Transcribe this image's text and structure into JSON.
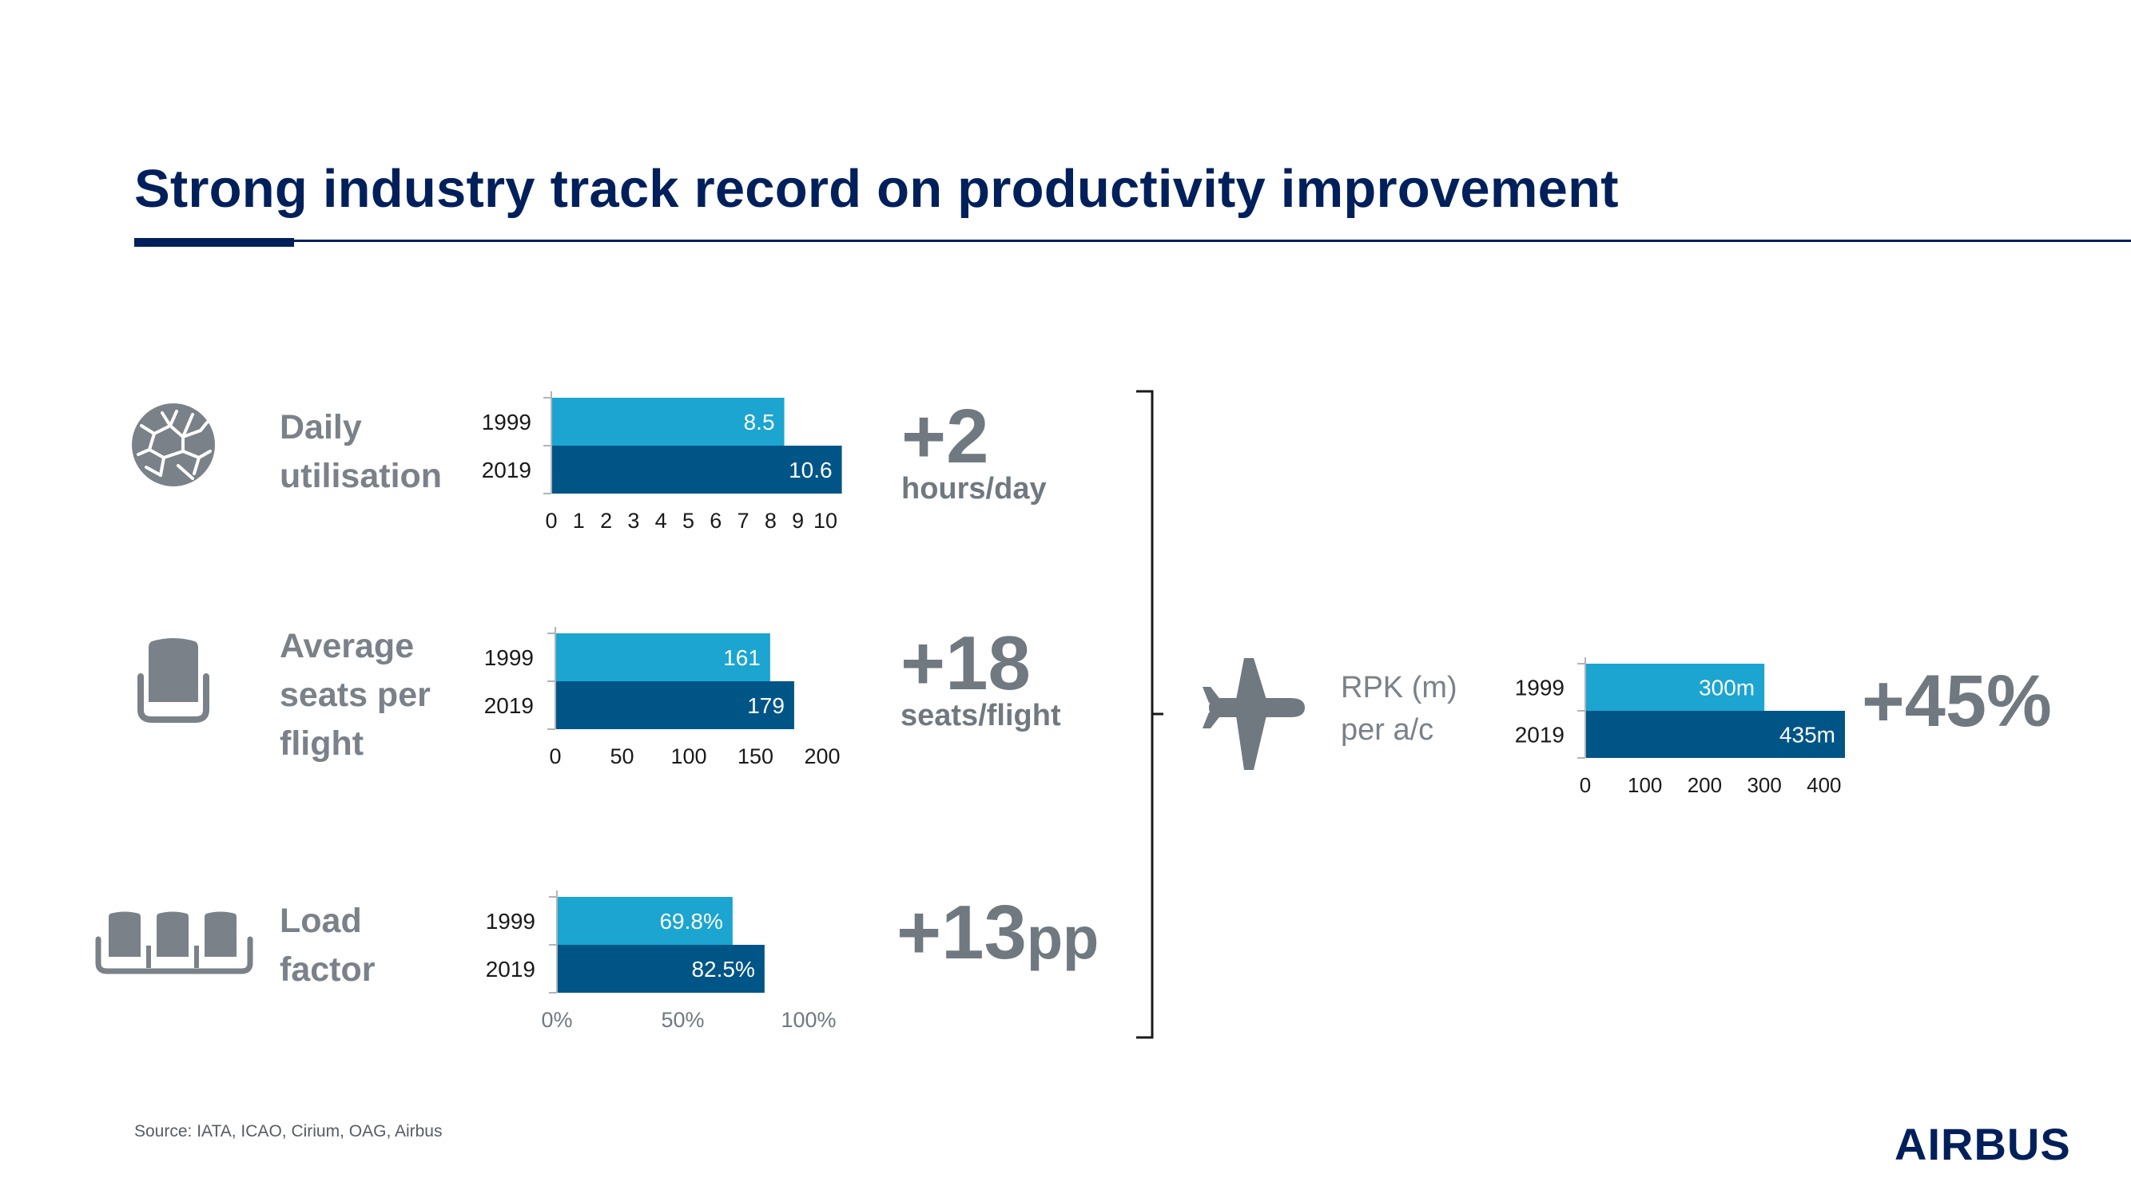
{
  "title": "Strong industry track record on productivity improvement",
  "colors": {
    "bar_1999": "#1ba5d0",
    "bar_2019": "#005587",
    "title": "#00205b",
    "label_grey": "#7a8189"
  },
  "metrics": [
    {
      "label_lines": [
        "Daily",
        "utilisation"
      ],
      "icon": "globe-icon",
      "delta_big": "+2",
      "delta_unit": "hours/day"
    },
    {
      "label_lines": [
        "Average",
        "seats per",
        "flight"
      ],
      "icon": "seat-icon",
      "delta_big": "+18",
      "delta_unit": "seats/flight"
    },
    {
      "label_lines": [
        "Load",
        "factor"
      ],
      "icon": "three-seats-icon",
      "delta_big": "+13",
      "delta_unit": "pp"
    }
  ],
  "rpk": {
    "label_lines": [
      "RPK (m)",
      "per a/c"
    ],
    "icon": "airplane-icon",
    "delta": "+45%"
  },
  "chart_data": [
    {
      "type": "bar",
      "orientation": "horizontal",
      "categories": [
        "1999",
        "2019"
      ],
      "values": [
        8.5,
        10.6
      ],
      "value_labels": [
        "8.5",
        "10.6"
      ],
      "xlim": [
        0,
        10
      ],
      "xticks": [
        "0",
        "1",
        "2",
        "3",
        "4",
        "5",
        "6",
        "7",
        "8",
        "9",
        "10"
      ],
      "tick_values": [
        0,
        1,
        2,
        3,
        4,
        5,
        6,
        7,
        8,
        9,
        10
      ]
    },
    {
      "type": "bar",
      "orientation": "horizontal",
      "categories": [
        "1999",
        "2019"
      ],
      "values": [
        161,
        179
      ],
      "value_labels": [
        "161",
        "179"
      ],
      "xlim": [
        0,
        200
      ],
      "xticks": [
        "0",
        "50",
        "100",
        "150",
        "200"
      ],
      "tick_values": [
        0,
        50,
        100,
        150,
        200
      ]
    },
    {
      "type": "bar",
      "orientation": "horizontal",
      "categories": [
        "1999",
        "2019"
      ],
      "values": [
        69.8,
        82.5
      ],
      "value_labels": [
        "69.8%",
        "82.5%"
      ],
      "xlim": [
        0,
        100
      ],
      "xticks": [
        "0%",
        "50%",
        "100%"
      ],
      "tick_values": [
        0,
        50,
        100
      ]
    },
    {
      "type": "bar",
      "orientation": "horizontal",
      "categories": [
        "1999",
        "2019"
      ],
      "values": [
        300,
        435
      ],
      "value_labels": [
        "300m",
        "435m"
      ],
      "xlim": [
        0,
        435
      ],
      "xticks": [
        "0",
        "100",
        "200",
        "300",
        "400"
      ],
      "tick_values": [
        0,
        100,
        200,
        300,
        400
      ]
    }
  ],
  "source": "Source: IATA, ICAO, Cirium, OAG, Airbus",
  "logo": "AIRBUS"
}
